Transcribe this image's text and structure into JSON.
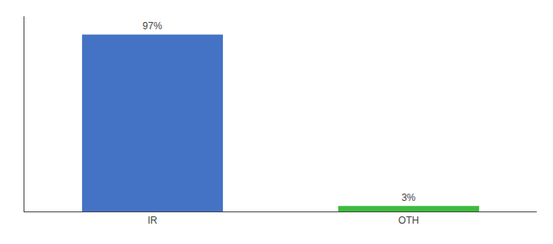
{
  "chart_data": {
    "type": "bar",
    "categories": [
      "IR",
      "OTH"
    ],
    "values": [
      97,
      3
    ],
    "value_labels": [
      "97%",
      "3%"
    ],
    "data_labels": true,
    "colors": [
      "#4472c4",
      "#3dbb3d"
    ],
    "ylim": [
      0,
      107
    ],
    "tick_labels": "x",
    "grid": false
  }
}
